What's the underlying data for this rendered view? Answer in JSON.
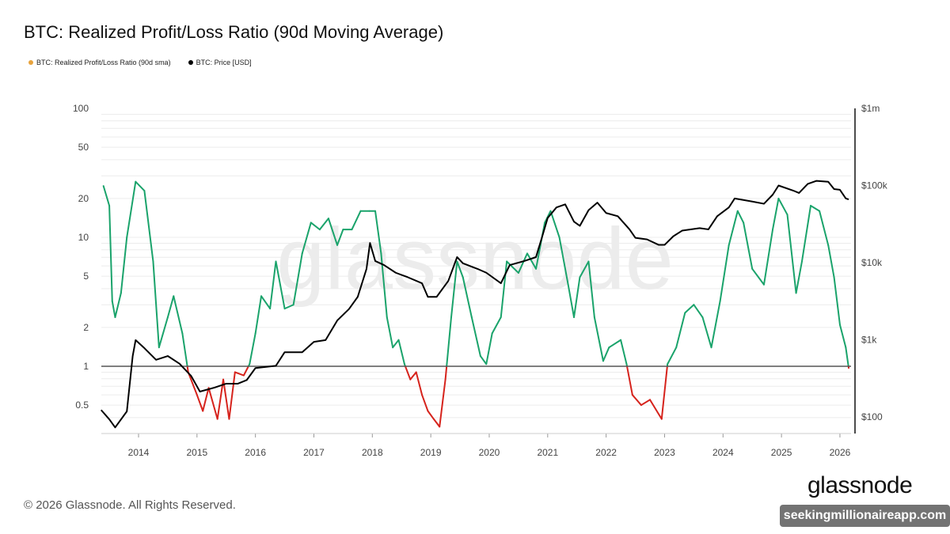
{
  "title": "BTC: Realized Profit/Loss Ratio (90d Moving Average)",
  "legend": [
    {
      "label": "BTC: Realized Profit/Loss Ratio (90d sma)",
      "color": "#e8a33d"
    },
    {
      "label": "BTC: Price [USD]",
      "color": "#000000"
    }
  ],
  "footer": "© 2026 Glassnode. All Rights Reserved.",
  "logo": "glassnode",
  "background_watermark": "glassnode",
  "overlay_watermark": "seekingmillionaireapp.com",
  "chart_data": {
    "type": "line",
    "x_ticks": [
      "2014",
      "2015",
      "2016",
      "2017",
      "2018",
      "2019",
      "2020",
      "2021",
      "2022",
      "2023",
      "2024",
      "2025",
      "2026"
    ],
    "y_left": {
      "scale": "log",
      "ticks": [
        0.5,
        1,
        2,
        5,
        10,
        20,
        50,
        100
      ],
      "tick_labels": [
        "0.5",
        "1",
        "2",
        "5",
        "10",
        "20",
        "50",
        "100"
      ],
      "range": [
        0.3,
        100
      ]
    },
    "y_right": {
      "scale": "log",
      "ticks": [
        100,
        1000,
        10000,
        100000,
        1000000
      ],
      "tick_labels": [
        "$100",
        "$1k",
        "$10k",
        "$100k",
        "$1m"
      ],
      "range": [
        60,
        1000000
      ]
    },
    "xlim": [
      2013.36,
      2026.15
    ],
    "reference_line": 1,
    "colors": {
      "ratio_above_1": "#1aa36b",
      "ratio_below_1": "#d6231c",
      "price": "#000000",
      "reference": "#555555"
    },
    "grid": "horizontal",
    "legend_placement": "top-left",
    "series": [
      {
        "name": "BTC: Realized Profit/Loss Ratio (90d sma)",
        "axis": "left",
        "x": [
          2013.4,
          2013.5,
          2013.55,
          2013.6,
          2013.7,
          2013.8,
          2013.95,
          2014.1,
          2014.25,
          2014.35,
          2014.5,
          2014.6,
          2014.75,
          2014.85,
          2015.0,
          2015.1,
          2015.2,
          2015.35,
          2015.45,
          2015.55,
          2015.65,
          2015.8,
          2015.9,
          2016.0,
          2016.1,
          2016.25,
          2016.35,
          2016.5,
          2016.65,
          2016.8,
          2016.95,
          2017.1,
          2017.25,
          2017.4,
          2017.5,
          2017.65,
          2017.8,
          2017.95,
          2018.05,
          2018.15,
          2018.25,
          2018.35,
          2018.45,
          2018.55,
          2018.65,
          2018.75,
          2018.85,
          2018.95,
          2019.05,
          2019.15,
          2019.25,
          2019.35,
          2019.45,
          2019.55,
          2019.7,
          2019.85,
          2019.95,
          2020.05,
          2020.2,
          2020.3,
          2020.5,
          2020.65,
          2020.8,
          2020.95,
          2021.05,
          2021.2,
          2021.35,
          2021.45,
          2021.55,
          2021.7,
          2021.8,
          2021.95,
          2022.05,
          2022.25,
          2022.35,
          2022.45,
          2022.6,
          2022.75,
          2022.95,
          2023.05,
          2023.2,
          2023.35,
          2023.5,
          2023.65,
          2023.8,
          2023.95,
          2024.1,
          2024.25,
          2024.35,
          2024.5,
          2024.7,
          2024.85,
          2024.95,
          2025.1,
          2025.25,
          2025.35,
          2025.5,
          2025.65,
          2025.8,
          2025.9,
          2026.0,
          2026.1,
          2026.15
        ],
        "values": [
          25,
          17.6,
          3.2,
          2.4,
          3.7,
          10,
          27,
          23,
          6.5,
          1.4,
          2.4,
          3.5,
          1.8,
          0.9,
          0.6,
          0.45,
          0.68,
          0.39,
          0.79,
          0.39,
          0.9,
          0.85,
          1.04,
          1.8,
          3.5,
          2.8,
          6.5,
          2.8,
          3.0,
          7.5,
          13,
          11.5,
          14,
          8.7,
          11.5,
          11.5,
          16,
          16,
          16,
          7.5,
          2.4,
          1.4,
          1.6,
          1.04,
          0.79,
          0.9,
          0.6,
          0.45,
          0.39,
          0.34,
          0.79,
          2.4,
          6.5,
          4.9,
          2.4,
          1.2,
          1.04,
          1.8,
          2.4,
          6.5,
          5.3,
          7.5,
          5.7,
          13,
          16,
          10,
          4.3,
          2.4,
          4.9,
          6.5,
          2.4,
          1.1,
          1.4,
          1.6,
          1.04,
          0.6,
          0.5,
          0.55,
          0.39,
          1.04,
          1.4,
          2.6,
          3.0,
          2.4,
          1.4,
          3.2,
          8.7,
          16,
          13,
          5.7,
          4.3,
          11.5,
          20,
          15,
          3.7,
          6.5,
          17.6,
          16,
          8.7,
          4.9,
          2.1,
          1.4,
          0.97
        ]
      },
      {
        "name": "BTC: Price [USD]",
        "axis": "right",
        "x": [
          2013.36,
          2013.5,
          2013.6,
          2013.8,
          2013.9,
          2013.95,
          2014.1,
          2014.3,
          2014.5,
          2014.7,
          2014.9,
          2015.05,
          2015.3,
          2015.5,
          2015.7,
          2015.85,
          2016.0,
          2016.35,
          2016.5,
          2016.8,
          2017.0,
          2017.2,
          2017.4,
          2017.6,
          2017.75,
          2017.9,
          2017.96,
          2018.05,
          2018.2,
          2018.4,
          2018.6,
          2018.85,
          2018.95,
          2019.1,
          2019.3,
          2019.45,
          2019.55,
          2019.8,
          2019.95,
          2020.2,
          2020.35,
          2020.6,
          2020.8,
          2020.9,
          2021.0,
          2021.15,
          2021.3,
          2021.45,
          2021.55,
          2021.7,
          2021.85,
          2022.0,
          2022.2,
          2022.4,
          2022.5,
          2022.7,
          2022.9,
          2023.0,
          2023.15,
          2023.3,
          2023.6,
          2023.75,
          2023.9,
          2024.1,
          2024.2,
          2024.5,
          2024.7,
          2024.85,
          2024.95,
          2025.2,
          2025.3,
          2025.45,
          2025.6,
          2025.8,
          2025.9,
          2026.0,
          2026.1,
          2026.15
        ],
        "values": [
          123,
          93,
          73,
          118,
          616,
          990,
          780,
          550,
          616,
          490,
          340,
          213,
          240,
          270,
          270,
          300,
          430,
          460,
          690,
          690,
          940,
          990,
          1780,
          2500,
          3600,
          8300,
          18000,
          10500,
          9300,
          7400,
          6500,
          5400,
          3600,
          3600,
          5800,
          11800,
          9800,
          8300,
          7400,
          5400,
          9300,
          10500,
          11800,
          21000,
          38000,
          52000,
          57000,
          34000,
          30000,
          48000,
          60000,
          44000,
          40000,
          27000,
          21000,
          20000,
          17000,
          17000,
          22000,
          26000,
          28000,
          27000,
          40000,
          52000,
          68000,
          62000,
          58000,
          76000,
          100000,
          86000,
          80000,
          105000,
          115000,
          112000,
          90000,
          88000,
          68000,
          66000
        ]
      }
    ]
  }
}
